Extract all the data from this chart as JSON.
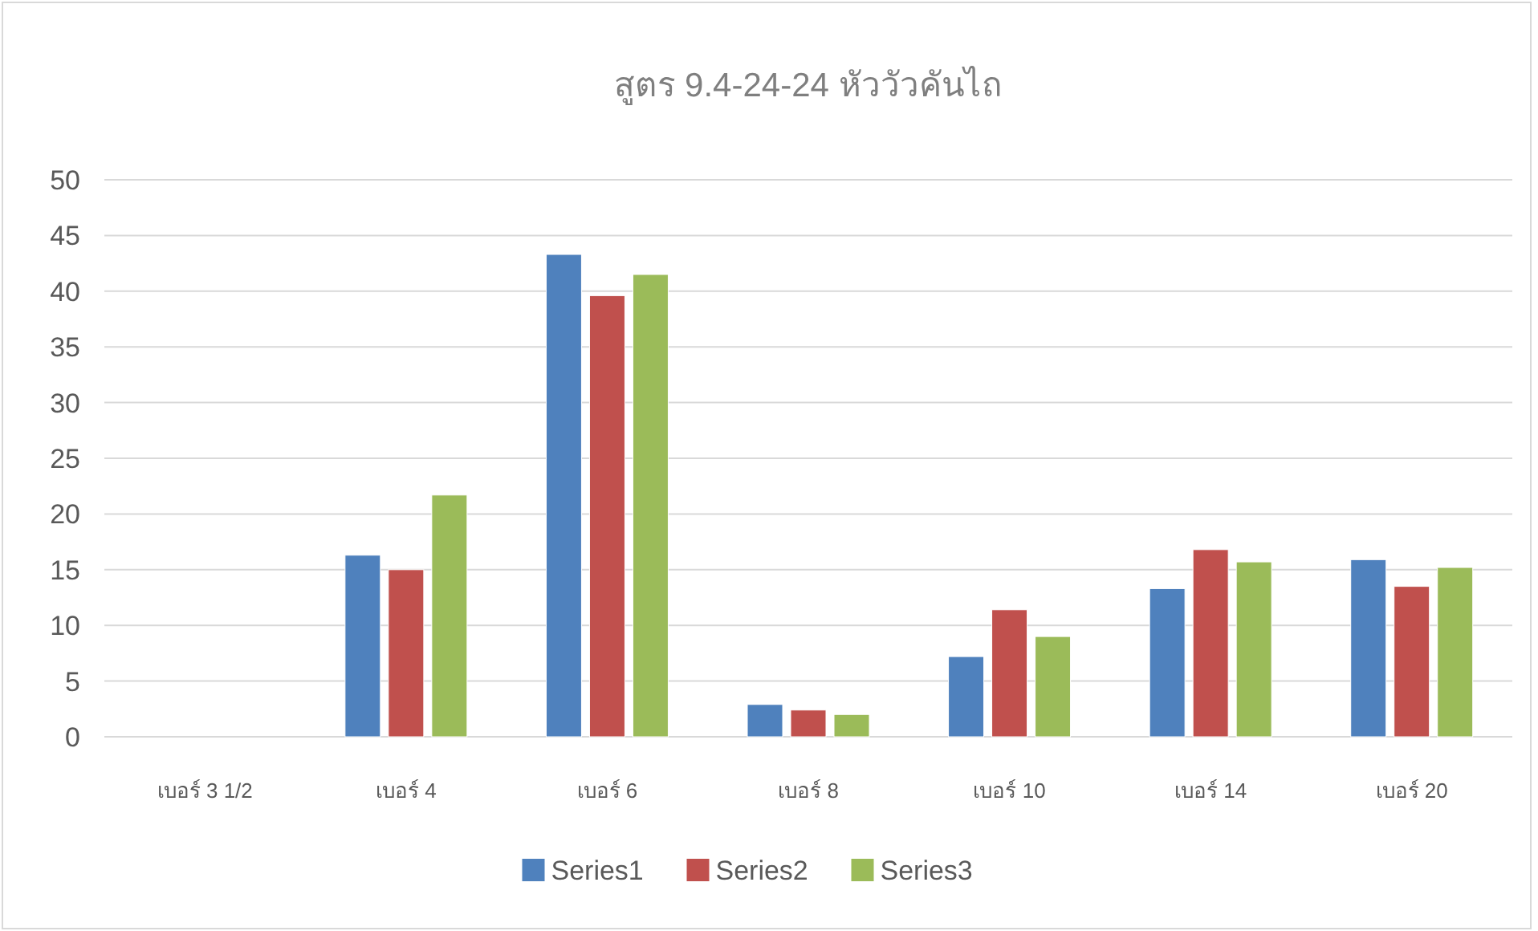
{
  "chart_data": {
    "type": "bar",
    "title": "สูตร 9.4-24-24 หัววัวคันไถ",
    "categories": [
      "เบอร์ 3 1/2",
      "เบอร์ 4",
      "เบอร์ 6",
      "เบอร์ 8",
      "เบอร์ 10",
      "เบอร์ 14",
      "เบอร์ 20"
    ],
    "series": [
      {
        "name": "Series1",
        "color": "#4f81bd",
        "values": [
          0,
          16.3,
          43.3,
          2.9,
          7.2,
          13.3,
          15.9
        ]
      },
      {
        "name": "Series2",
        "color": "#c0504d",
        "values": [
          0,
          15.0,
          39.6,
          2.4,
          11.4,
          16.8,
          13.5
        ]
      },
      {
        "name": "Series3",
        "color": "#9bbb59",
        "values": [
          0,
          21.7,
          41.5,
          2.0,
          9.0,
          15.7,
          15.2
        ]
      }
    ],
    "ylim": [
      0,
      50
    ],
    "yticks": [
      0,
      5,
      10,
      15,
      20,
      25,
      30,
      35,
      40,
      45,
      50
    ],
    "grid": "y",
    "legend": "bottom"
  }
}
